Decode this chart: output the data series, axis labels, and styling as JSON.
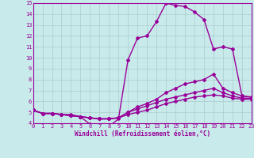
{
  "bg_color": "#c8eaea",
  "line_color": "#990099",
  "grid_color": "#aacccc",
  "lines": [
    {
      "x": [
        0,
        1,
        2,
        3,
        4,
        5,
        6,
        7,
        8,
        9,
        10,
        11,
        12,
        13,
        14,
        15,
        16,
        17,
        18,
        19,
        20,
        21,
        22,
        23
      ],
      "y": [
        5.2,
        4.9,
        4.9,
        4.8,
        4.8,
        4.6,
        3.9,
        3.7,
        3.7,
        4.4,
        9.8,
        11.8,
        12.0,
        13.3,
        15.0,
        14.8,
        14.7,
        14.2,
        13.5,
        10.8,
        11.0,
        10.8,
        6.5,
        6.4
      ]
    },
    {
      "x": [
        0,
        1,
        2,
        3,
        4,
        5,
        6,
        7,
        8,
        9,
        10,
        11,
        12,
        13,
        14,
        15,
        16,
        17,
        18,
        19,
        20,
        21,
        22,
        23
      ],
      "y": [
        5.2,
        4.9,
        4.9,
        4.8,
        4.7,
        4.6,
        4.5,
        4.4,
        4.4,
        4.5,
        5.0,
        5.5,
        5.8,
        6.2,
        6.8,
        7.2,
        7.6,
        7.8,
        8.0,
        8.5,
        7.2,
        6.8,
        6.5,
        6.4
      ]
    },
    {
      "x": [
        0,
        1,
        2,
        3,
        4,
        5,
        6,
        7,
        8,
        9,
        10,
        11,
        12,
        13,
        14,
        15,
        16,
        17,
        18,
        19,
        20,
        21,
        22,
        23
      ],
      "y": [
        5.2,
        4.9,
        4.9,
        4.8,
        4.7,
        4.6,
        4.5,
        4.4,
        4.4,
        4.5,
        5.0,
        5.3,
        5.6,
        5.9,
        6.2,
        6.4,
        6.6,
        6.8,
        7.0,
        7.2,
        6.8,
        6.5,
        6.3,
        6.3
      ]
    },
    {
      "x": [
        0,
        1,
        2,
        3,
        4,
        5,
        6,
        7,
        8,
        9,
        10,
        11,
        12,
        13,
        14,
        15,
        16,
        17,
        18,
        19,
        20,
        21,
        22,
        23
      ],
      "y": [
        5.2,
        4.9,
        4.9,
        4.8,
        4.7,
        4.6,
        4.5,
        4.4,
        4.4,
        4.5,
        4.8,
        5.0,
        5.2,
        5.5,
        5.8,
        6.0,
        6.2,
        6.4,
        6.5,
        6.6,
        6.5,
        6.3,
        6.2,
        6.2
      ]
    }
  ],
  "xlabel": "Windchill (Refroidissement éolien,°C)",
  "xlim": [
    0,
    23
  ],
  "ylim": [
    4,
    15
  ],
  "xticks": [
    0,
    1,
    2,
    3,
    4,
    5,
    6,
    7,
    8,
    9,
    10,
    11,
    12,
    13,
    14,
    15,
    16,
    17,
    18,
    19,
    20,
    21,
    22,
    23
  ],
  "yticks": [
    4,
    5,
    6,
    7,
    8,
    9,
    10,
    11,
    12,
    13,
    14,
    15
  ],
  "marker": "D",
  "markersize": 2,
  "linewidth": 1.0,
  "tick_fontsize": 5,
  "xlabel_fontsize": 5.5
}
